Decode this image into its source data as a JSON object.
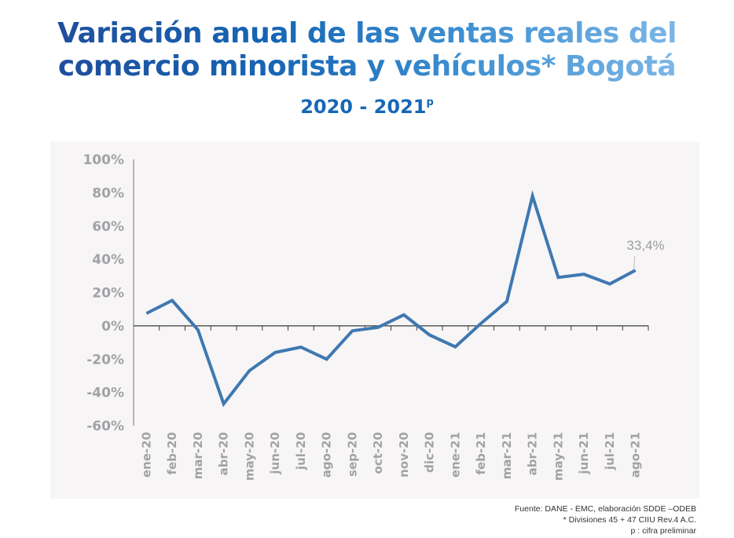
{
  "header": {
    "title_line1": "Variación anual de las ventas reales del",
    "title_line2": "comercio minorista y vehículos* Bogotá",
    "subtitle_main": "2020 - 2021",
    "subtitle_sup": "p"
  },
  "colors": {
    "line": "#3f78b1",
    "title_start": "#1f4e9c",
    "title_end": "#7bb6e6",
    "panel_bg": "#f7f5f6",
    "tick_text": "#a0a3a6"
  },
  "chart_data": {
    "type": "line",
    "title": "Variación anual de las ventas reales del comercio minorista y vehículos* Bogotá 2020 - 2021p",
    "xlabel": "",
    "ylabel": "",
    "ylim": [
      -60,
      100
    ],
    "yticks": [
      100,
      80,
      60,
      40,
      20,
      0,
      -20,
      -40,
      -60
    ],
    "ytick_labels": [
      "100%",
      "80%",
      "60%",
      "40%",
      "20%",
      "0%",
      "-20%",
      "-40%",
      "-60%"
    ],
    "grid": false,
    "legend": "none",
    "categories": [
      "ene-20",
      "feb-20",
      "mar-20",
      "abr-20",
      "may-20",
      "jun-20",
      "jul-20",
      "ago-20",
      "sep-20",
      "oct-20",
      "nov-20",
      "dic-20",
      "ene-21",
      "feb-21",
      "mar-21",
      "abr-21",
      "may-21",
      "jun-21",
      "jul-21",
      "ago-21"
    ],
    "series": [
      {
        "name": "Variación anual ventas reales",
        "values": [
          7.5,
          15.3,
          -2.4,
          -46.9,
          -26.9,
          -16.0,
          -12.8,
          -20.0,
          -3.0,
          -0.9,
          6.6,
          -5.5,
          -12.6,
          1.5,
          14.6,
          78.0,
          29.1,
          31.0,
          25.2,
          33.4
        ]
      }
    ],
    "annotations": [
      {
        "category": "ago-21",
        "text": "33,4%"
      }
    ]
  },
  "footer": {
    "source": "Fuente: DANE - EMC, elaboración SDDE –ODEB",
    "note1": "* Divisiones 45 + 47 CIIU Rev.4 A.C.",
    "note2": "p : cifra preliminar"
  }
}
